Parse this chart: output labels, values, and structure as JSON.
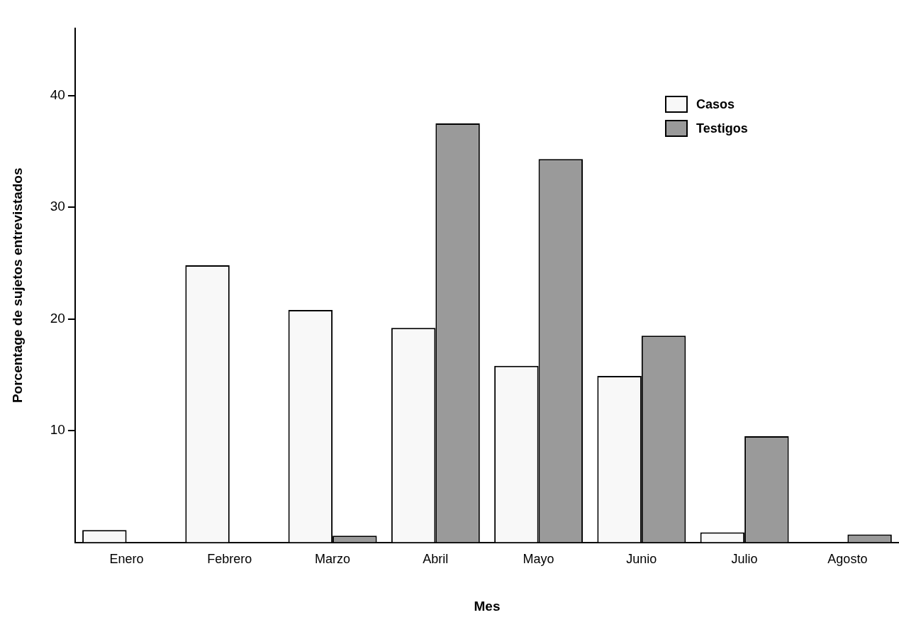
{
  "chart_data": {
    "type": "bar",
    "xlabel": "Mes",
    "ylabel": "Porcentage de sujetos entrevistados",
    "categories": [
      "Enero",
      "Febrero",
      "Marzo",
      "Abril",
      "Mayo",
      "Junio",
      "Julio",
      "Agosto"
    ],
    "series": [
      {
        "name": "Casos",
        "color": "#f8f8f8",
        "values": [
          1.1,
          24.8,
          20.8,
          19.2,
          15.8,
          14.9,
          0.9,
          null
        ]
      },
      {
        "name": "Testigos",
        "color": "#9a9a9a",
        "values": [
          null,
          null,
          0.6,
          37.5,
          34.3,
          18.5,
          9.5,
          0.7
        ]
      }
    ],
    "ylim": [
      0,
      46
    ],
    "yticks": [
      10,
      20,
      30,
      40
    ],
    "grid": false,
    "legend": "top right"
  }
}
